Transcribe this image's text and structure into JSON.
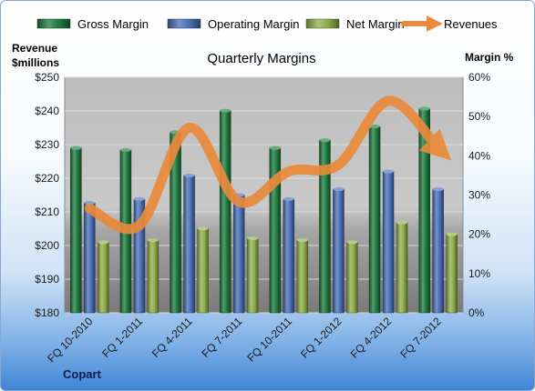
{
  "chart_data": {
    "type": "bar",
    "title": "Quarterly Margins",
    "company": "Copart",
    "left_axis_label": [
      "Revenue",
      "$millions"
    ],
    "right_axis_label": "Margin %",
    "categories": [
      "FQ 10-2010",
      "FQ 1-2011",
      "FQ 4-2011",
      "FQ 7-2011",
      "FQ 10-2011",
      "FQ 1-2012",
      "FQ 4-2012",
      "FQ 7-2012"
    ],
    "left_ylim": [
      180,
      250
    ],
    "left_ticks": [
      "$180",
      "$190",
      "$200",
      "$210",
      "$220",
      "$230",
      "$240",
      "$250"
    ],
    "right_ylim": [
      0,
      60
    ],
    "right_ticks": [
      "0%",
      "10%",
      "20%",
      "30%",
      "40%",
      "50%",
      "60%"
    ],
    "series": [
      {
        "name": "Gross Margin",
        "type": "bar",
        "axis": "right",
        "color": "#1e7a3e",
        "values": [
          42,
          41.5,
          46,
          51.5,
          42,
          44,
          47.5,
          52
        ]
      },
      {
        "name": "Operating Margin",
        "type": "bar",
        "axis": "right",
        "color": "#4a6fb5",
        "values": [
          28,
          29,
          35,
          30,
          29,
          31.5,
          36,
          31.5
        ]
      },
      {
        "name": "Net Margin",
        "type": "bar",
        "axis": "right",
        "color": "#8fae4a",
        "values": [
          18,
          18.5,
          21.5,
          19,
          18.5,
          18,
          23,
          20
        ]
      },
      {
        "name": "Revenues",
        "type": "line",
        "axis": "left",
        "color": "#ea8a3b",
        "values": [
          211,
          206,
          235,
          213,
          222,
          224,
          243,
          229
        ]
      }
    ],
    "legend_position": "top",
    "grid": true
  }
}
